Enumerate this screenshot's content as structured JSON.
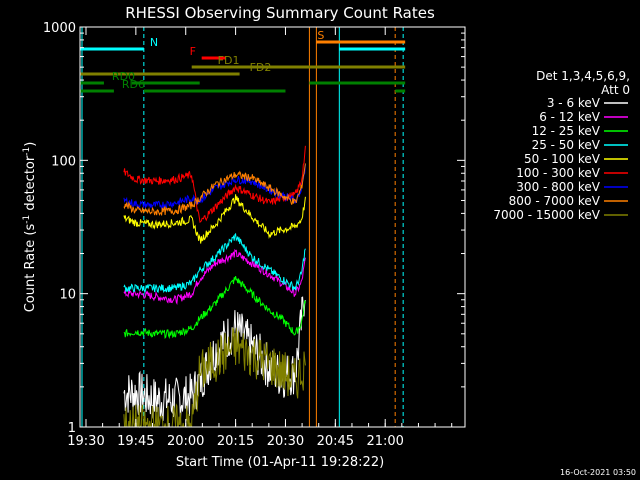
{
  "chart_data": {
    "type": "line",
    "title": "RHESSI Observing Summary Count Rates",
    "xlabel": "Start Time (01-Apr-11 19:28:22)",
    "ylabel_main": "Count Rate (s",
    "ylabel_sup1": "-1",
    "ylabel_mid": " detector",
    "ylabel_sup2": "-1",
    "ylabel_end": ")",
    "y_scale": "log",
    "ylim": [
      1,
      1000
    ],
    "x_range_minutes": [
      19.47,
      21.4
    ],
    "x_ticks": [
      {
        "t": 19.5,
        "label": "19:30"
      },
      {
        "t": 19.75,
        "label": "19:45"
      },
      {
        "t": 20.0,
        "label": "20:00"
      },
      {
        "t": 20.25,
        "label": "20:15"
      },
      {
        "t": 20.5,
        "label": "20:30"
      },
      {
        "t": 20.75,
        "label": "20:45"
      },
      {
        "t": 21.0,
        "label": "21:00"
      }
    ],
    "y_ticks": [
      {
        "v": 1,
        "label": "1"
      },
      {
        "v": 10,
        "label": "10"
      },
      {
        "v": 100,
        "label": "100"
      },
      {
        "v": 1000,
        "label": "1000"
      }
    ],
    "legend_title_1": "Det 1,3,4,5,6,9,",
    "legend_title_2": "Att 0",
    "legend_placement": "right",
    "timestamp": "16-Oct-2021 03:50",
    "series": [
      {
        "name": "3 - 6 keV",
        "color": "#ffffff",
        "points": [
          [
            19.69,
            1.8
          ],
          [
            19.75,
            1.8
          ],
          [
            19.85,
            1.6
          ],
          [
            19.95,
            1.6
          ],
          [
            20.03,
            1.7
          ],
          [
            20.07,
            2.2
          ],
          [
            20.15,
            3.8
          ],
          [
            20.25,
            5.5
          ],
          [
            20.33,
            4
          ],
          [
            20.42,
            2.8
          ],
          [
            20.48,
            2.4
          ],
          [
            20.55,
            2.6
          ],
          [
            20.58,
            6
          ],
          [
            20.6,
            12
          ]
        ]
      },
      {
        "name": "6 - 12 keV",
        "color": "#ff00ff",
        "points": [
          [
            19.69,
            10
          ],
          [
            19.75,
            10
          ],
          [
            19.85,
            9.5
          ],
          [
            19.95,
            9
          ],
          [
            20.03,
            10
          ],
          [
            20.07,
            13
          ],
          [
            20.15,
            17
          ],
          [
            20.25,
            20
          ],
          [
            20.33,
            17
          ],
          [
            20.42,
            14
          ],
          [
            20.48,
            12
          ],
          [
            20.55,
            10
          ],
          [
            20.58,
            12
          ],
          [
            20.6,
            18
          ]
        ]
      },
      {
        "name": "12 - 25 keV",
        "color": "#00ff00",
        "points": [
          [
            19.69,
            5
          ],
          [
            19.75,
            5.2
          ],
          [
            19.85,
            5
          ],
          [
            19.95,
            5
          ],
          [
            20.03,
            5.5
          ],
          [
            20.07,
            6.5
          ],
          [
            20.15,
            8.5
          ],
          [
            20.25,
            13
          ],
          [
            20.33,
            10
          ],
          [
            20.42,
            7.5
          ],
          [
            20.48,
            6.5
          ],
          [
            20.55,
            5
          ],
          [
            20.58,
            6
          ],
          [
            20.6,
            9
          ]
        ]
      },
      {
        "name": "25 - 50 keV",
        "color": "#00ffff",
        "points": [
          [
            19.69,
            11
          ],
          [
            19.75,
            11
          ],
          [
            19.85,
            11
          ],
          [
            19.95,
            11
          ],
          [
            20.03,
            12
          ],
          [
            20.07,
            15
          ],
          [
            20.15,
            19
          ],
          [
            20.25,
            27
          ],
          [
            20.33,
            19
          ],
          [
            20.42,
            15
          ],
          [
            20.48,
            13
          ],
          [
            20.55,
            11
          ],
          [
            20.58,
            14
          ],
          [
            20.6,
            22
          ]
        ]
      },
      {
        "name": "50 - 100 keV",
        "color": "#ffff00",
        "points": [
          [
            19.69,
            37
          ],
          [
            19.75,
            34
          ],
          [
            19.85,
            33
          ],
          [
            19.95,
            34
          ],
          [
            20.03,
            36
          ],
          [
            20.07,
            25
          ],
          [
            20.15,
            33
          ],
          [
            20.25,
            52
          ],
          [
            20.33,
            38
          ],
          [
            20.42,
            28
          ],
          [
            20.48,
            30
          ],
          [
            20.55,
            32
          ],
          [
            20.58,
            36
          ],
          [
            20.6,
            50
          ]
        ]
      },
      {
        "name": "100 - 300 keV",
        "color": "#ff0000",
        "points": [
          [
            19.69,
            82
          ],
          [
            19.75,
            72
          ],
          [
            19.85,
            70
          ],
          [
            19.95,
            72
          ],
          [
            20.03,
            78
          ],
          [
            20.07,
            34
          ],
          [
            20.15,
            45
          ],
          [
            20.25,
            63
          ],
          [
            20.33,
            55
          ],
          [
            20.42,
            48
          ],
          [
            20.48,
            52
          ],
          [
            20.55,
            55
          ],
          [
            20.58,
            70
          ],
          [
            20.6,
            120
          ]
        ]
      },
      {
        "name": "300 - 800 keV",
        "color": "#0000ff",
        "points": [
          [
            19.69,
            50
          ],
          [
            19.75,
            47
          ],
          [
            19.85,
            46
          ],
          [
            19.95,
            48
          ],
          [
            20.03,
            52
          ],
          [
            20.07,
            50
          ],
          [
            20.15,
            62
          ],
          [
            20.25,
            72
          ],
          [
            20.33,
            70
          ],
          [
            20.42,
            60
          ],
          [
            20.48,
            55
          ],
          [
            20.55,
            50
          ],
          [
            20.58,
            60
          ],
          [
            20.6,
            90
          ]
        ]
      },
      {
        "name": "800 - 7000 keV",
        "color": "#ff8000",
        "points": [
          [
            19.69,
            47
          ],
          [
            19.75,
            42
          ],
          [
            19.85,
            41
          ],
          [
            19.95,
            42
          ],
          [
            20.03,
            46
          ],
          [
            20.07,
            52
          ],
          [
            20.15,
            66
          ],
          [
            20.25,
            78
          ],
          [
            20.33,
            74
          ],
          [
            20.42,
            62
          ],
          [
            20.48,
            55
          ],
          [
            20.55,
            48
          ],
          [
            20.58,
            62
          ],
          [
            20.6,
            95
          ]
        ]
      },
      {
        "name": "7000 - 15000 keV",
        "color": "#808000",
        "points": [
          [
            19.69,
            1
          ],
          [
            19.75,
            1
          ],
          [
            19.85,
            1
          ],
          [
            19.95,
            1
          ],
          [
            20.03,
            1
          ],
          [
            20.07,
            2.5
          ],
          [
            20.15,
            3.2
          ],
          [
            20.25,
            4
          ],
          [
            20.33,
            3.5
          ],
          [
            20.42,
            3
          ],
          [
            20.48,
            2.6
          ],
          [
            20.55,
            2.2
          ],
          [
            20.58,
            2.6
          ],
          [
            20.6,
            3
          ]
        ]
      }
    ],
    "markers": [
      {
        "label": "N",
        "color": "#00ffff",
        "t": 19.79,
        "row": 1
      },
      {
        "label": "F",
        "color": "#ff0000",
        "t": 20.08,
        "row": 2
      },
      {
        "label": "FD1",
        "color": "#808000",
        "t": 20.13,
        "row": 3
      },
      {
        "label": "FD2",
        "color": "#808000",
        "t": 20.29,
        "row": 4
      },
      {
        "label": "RD0",
        "color": "#008000",
        "t": 19.6,
        "row": 5
      },
      {
        "label": "RD6",
        "color": "#008000",
        "t": 19.65,
        "row": 6
      },
      {
        "label": "S",
        "color": "#ff8000",
        "t": 20.63,
        "row": 0
      }
    ]
  }
}
